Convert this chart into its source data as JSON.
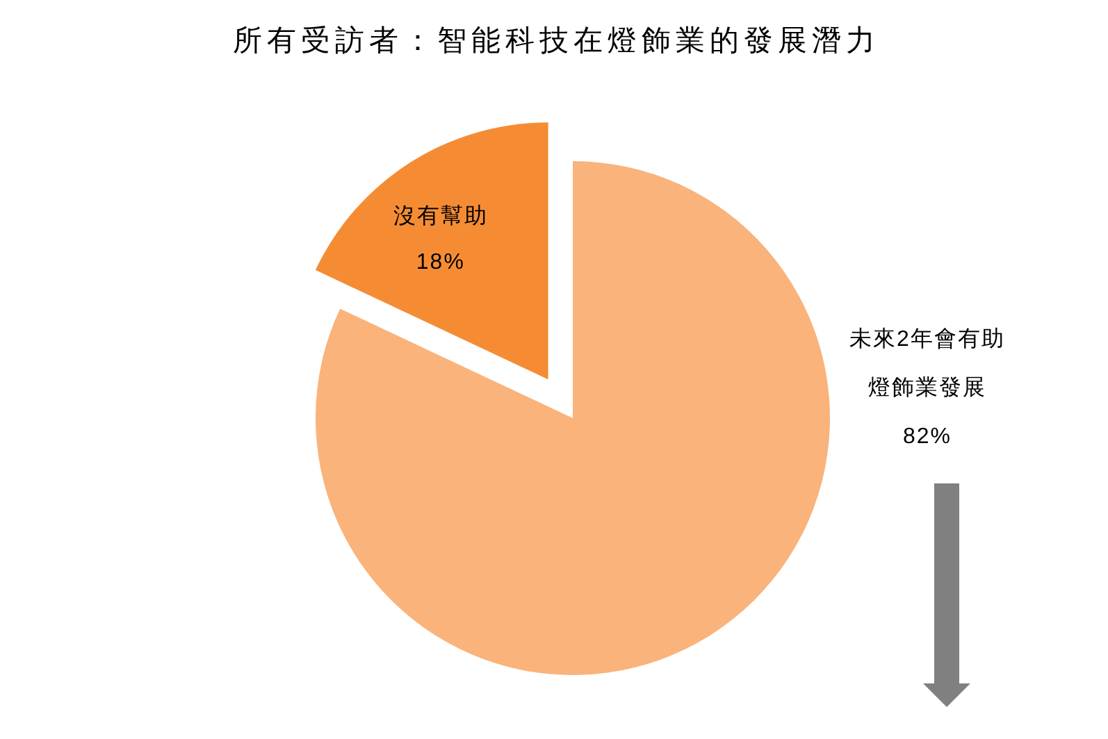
{
  "chart_data": {
    "type": "pie",
    "title": "所有受訪者：智能科技在燈飾業的發展潛力",
    "categories": [
      "未來2年會有助燈飾業發展",
      "沒有幫助"
    ],
    "values": [
      82,
      18
    ],
    "colors": [
      "#f9b37b",
      "#f58c34"
    ],
    "value_labels": [
      "82%",
      "18%"
    ]
  }
}
